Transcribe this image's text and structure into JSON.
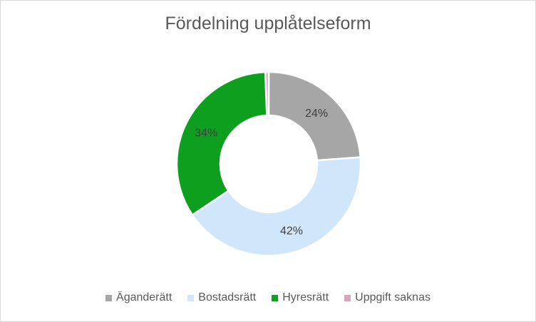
{
  "chart_data": {
    "type": "pie",
    "variant": "donut",
    "title": "Fördelning upplåtelseform",
    "categories": [
      "Äganderätt",
      "Bostadsrätt",
      "Hyresrätt",
      "Uppgift saknas"
    ],
    "values": [
      24,
      42,
      34,
      0.6
    ],
    "data_labels": [
      "24%",
      "42%",
      "34%",
      ""
    ],
    "colors": [
      "#a6a6a6",
      "#cfe6fb",
      "#0e9f1f",
      "#d8a5bb"
    ],
    "legend_position": "bottom"
  }
}
